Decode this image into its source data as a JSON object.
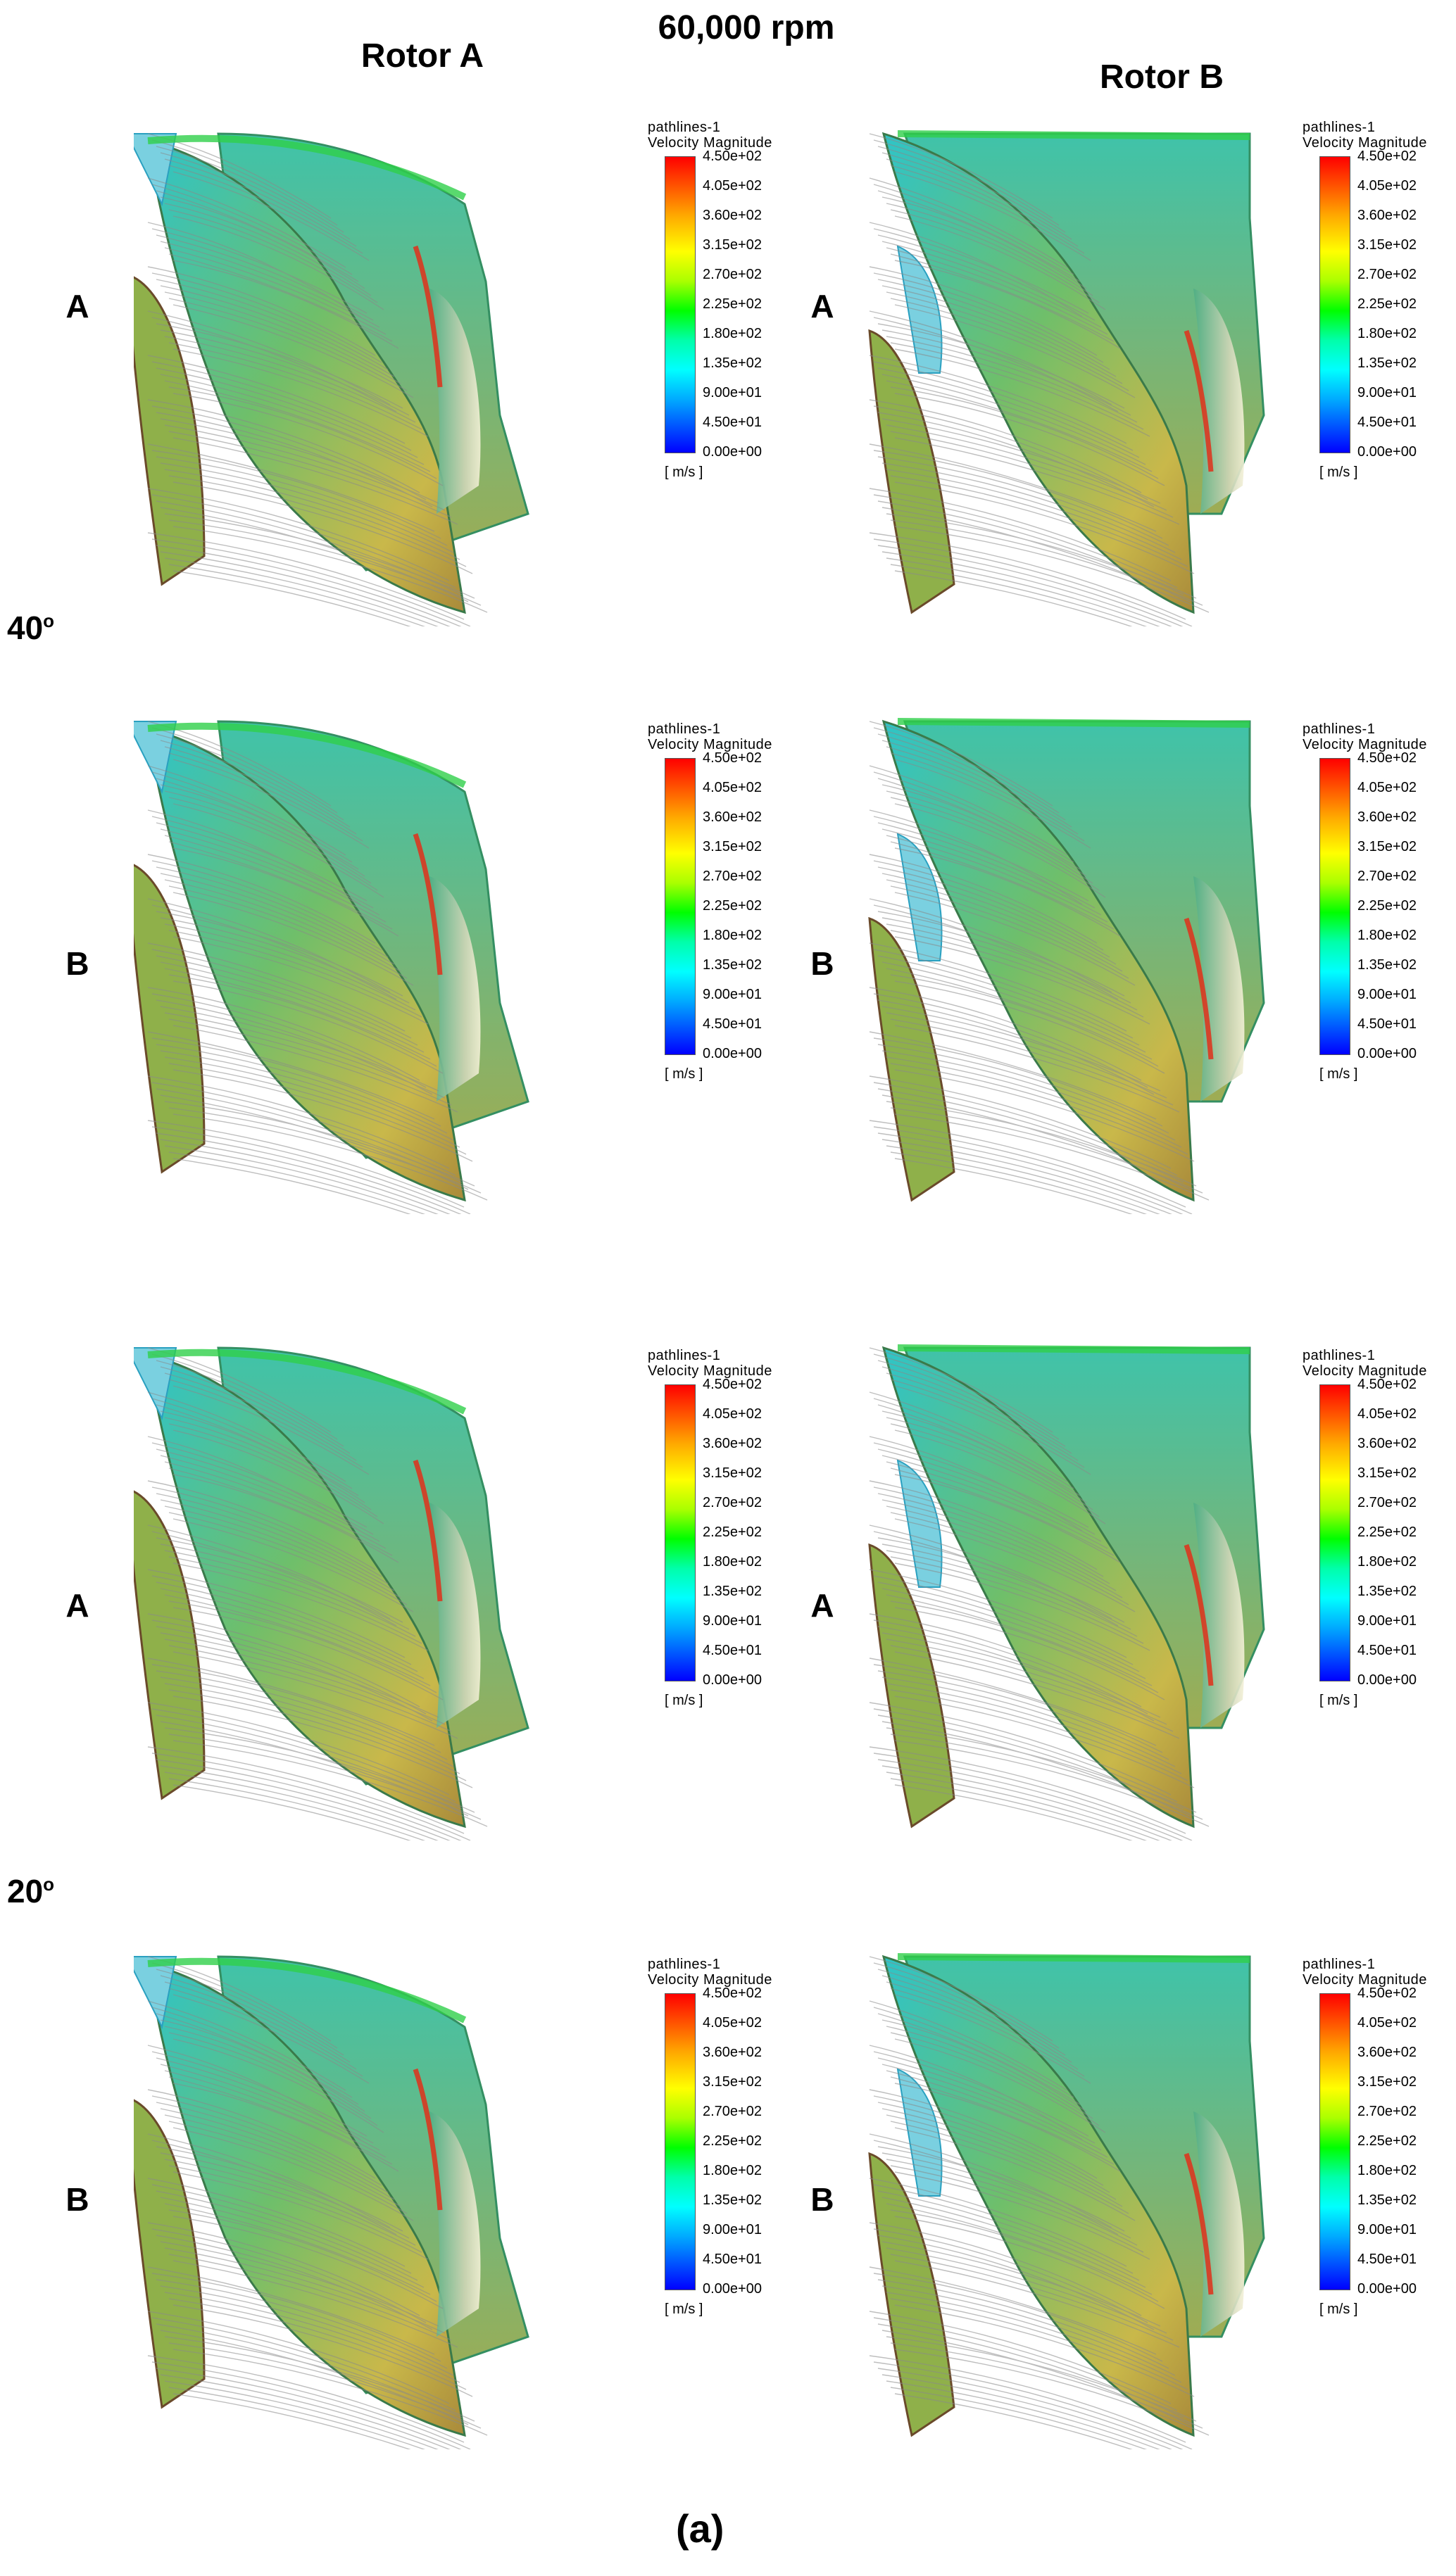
{
  "figure": {
    "title": "60,000 rpm",
    "columns": [
      "Rotor A",
      "Rotor B"
    ],
    "angles": [
      "40",
      "20"
    ],
    "angle_unit": "o",
    "caption": "(a)"
  },
  "rows": [
    "A",
    "B",
    "A",
    "B"
  ],
  "legend": {
    "title": "pathlines-1",
    "subtitle": "Velocity Magnitude",
    "ticks": [
      "4.50e+02",
      "4.05e+02",
      "3.60e+02",
      "3.15e+02",
      "2.70e+02",
      "2.25e+02",
      "1.80e+02",
      "1.35e+02",
      "9.00e+01",
      "4.50e+01",
      "0.00e+00"
    ],
    "unit": "[ m/s ]",
    "colors": [
      "#ff0000",
      "#ffaa00",
      "#ffff00",
      "#00ff00",
      "#00ffff",
      "#0000ff"
    ]
  }
}
